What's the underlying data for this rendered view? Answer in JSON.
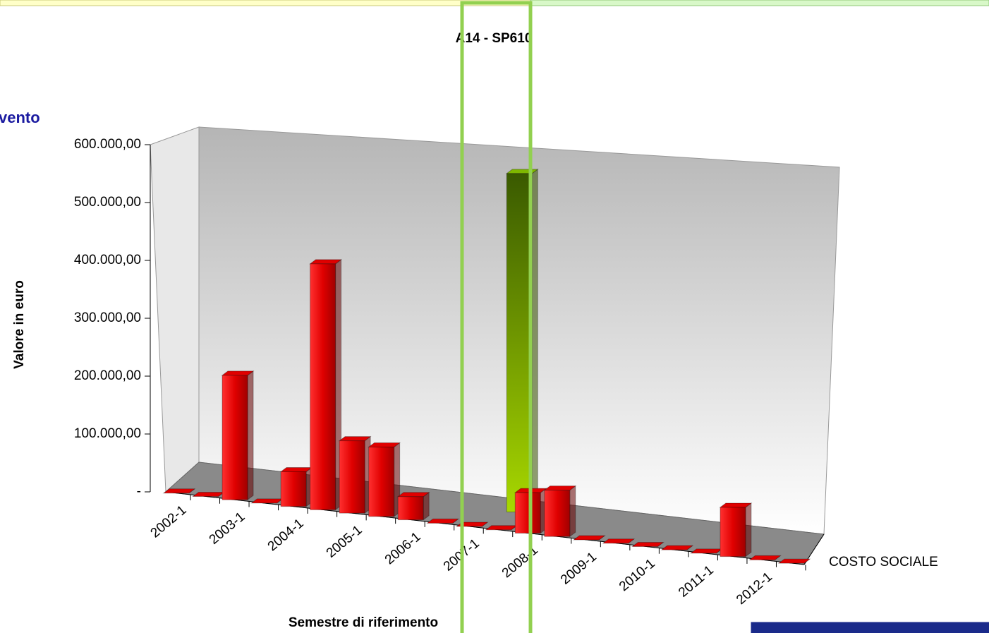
{
  "chart_data": {
    "type": "bar3d",
    "title": "A14 - SP610",
    "corner_text": "vento",
    "ylabel": "Valore in euro",
    "xlabel": "Semestre di riferimento",
    "categories": [
      "2002-1",
      null,
      "2003-1",
      null,
      "2004-1",
      null,
      "2005-1",
      null,
      "2006-1",
      null,
      "2007-1",
      null,
      "2008-1",
      null,
      "2009-1",
      null,
      "2010-1",
      null,
      "2011-1",
      null,
      "2012-1",
      null
    ],
    "series": [
      {
        "name": "COSTO SOCIALE",
        "color": "#e00000",
        "values": [
          0,
          0,
          215000,
          0,
          60000,
          425000,
          125000,
          120000,
          40000,
          0,
          0,
          0,
          70000,
          80000,
          0,
          0,
          0,
          0,
          0,
          85000,
          0,
          0
        ]
      }
    ],
    "highlight_color": "#7fb800",
    "highlight_values": [
      null,
      null,
      null,
      null,
      null,
      null,
      null,
      null,
      null,
      null,
      null,
      null,
      585000,
      null,
      null,
      null,
      null,
      null,
      null,
      null,
      null,
      null
    ],
    "ylim": [
      0,
      600000
    ],
    "yticks": [
      {
        "value": 0,
        "label": "-"
      },
      {
        "value": 100000,
        "label": "100.000,00"
      },
      {
        "value": 200000,
        "label": "200.000,00"
      },
      {
        "value": 300000,
        "label": "300.000,00"
      },
      {
        "value": 400000,
        "label": "400.000,00"
      },
      {
        "value": 500000,
        "label": "500.000,00"
      },
      {
        "value": 600000,
        "label": "600.000,00"
      }
    ]
  }
}
